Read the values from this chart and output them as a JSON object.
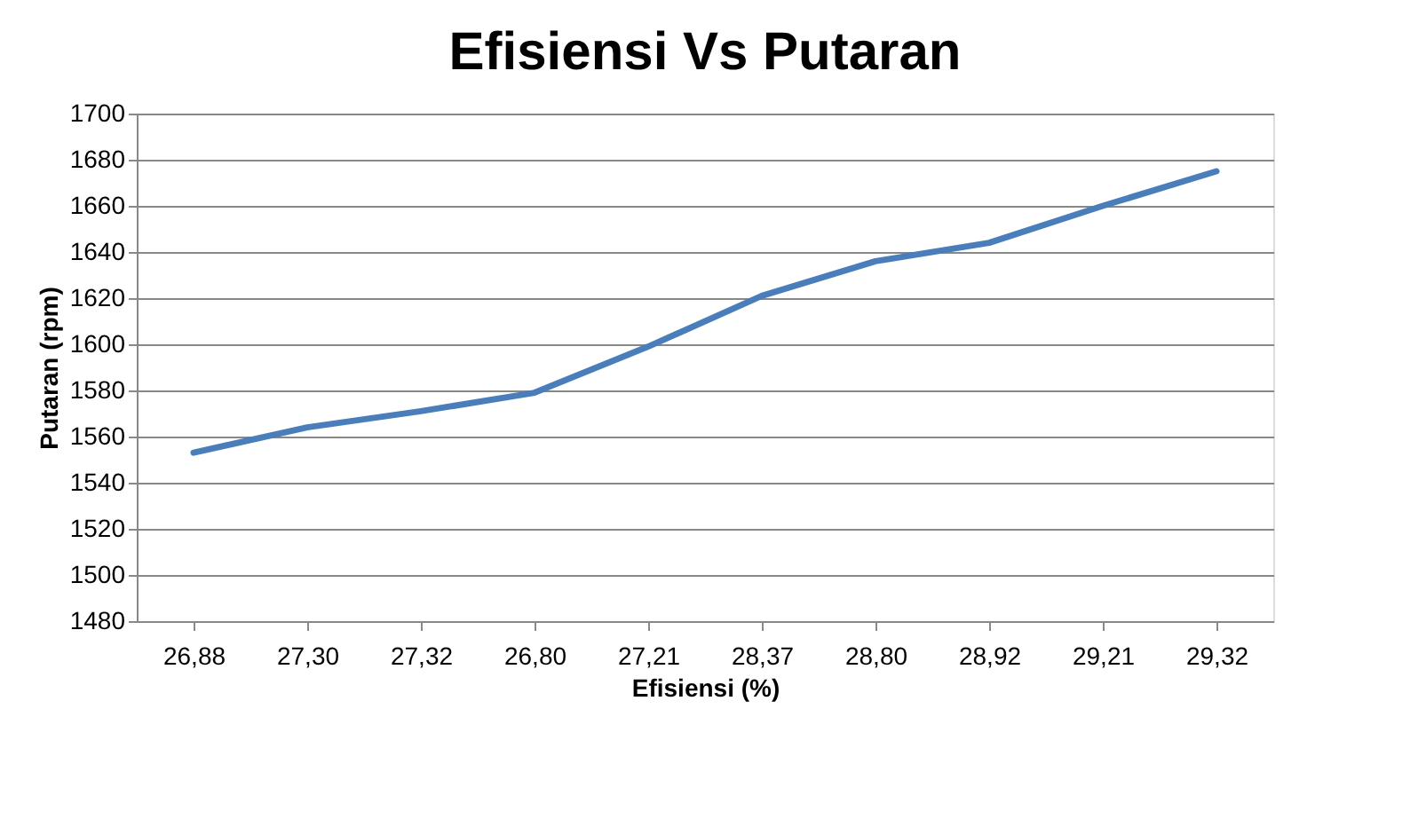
{
  "chart_data": {
    "type": "line",
    "title": "Efisiensi Vs Putaran",
    "xlabel": "Efisiensi (%)",
    "ylabel": "Putaran (rpm)",
    "categories": [
      "26,88",
      "27,30",
      "27,32",
      "26,80",
      "27,21",
      "28,37",
      "28,80",
      "28,92",
      "29,21",
      "29,32"
    ],
    "series": [
      {
        "color": "#4a7ebb",
        "values": [
          1553,
          1564,
          1571,
          1579,
          1599,
          1621,
          1636,
          1644,
          1660,
          1675
        ]
      }
    ],
    "ylim": [
      1480,
      1700
    ],
    "yticks": [
      1480,
      1500,
      1520,
      1540,
      1560,
      1580,
      1600,
      1620,
      1640,
      1660,
      1680,
      1700
    ],
    "grid": "y",
    "marker": "none",
    "line_style": "solid"
  }
}
